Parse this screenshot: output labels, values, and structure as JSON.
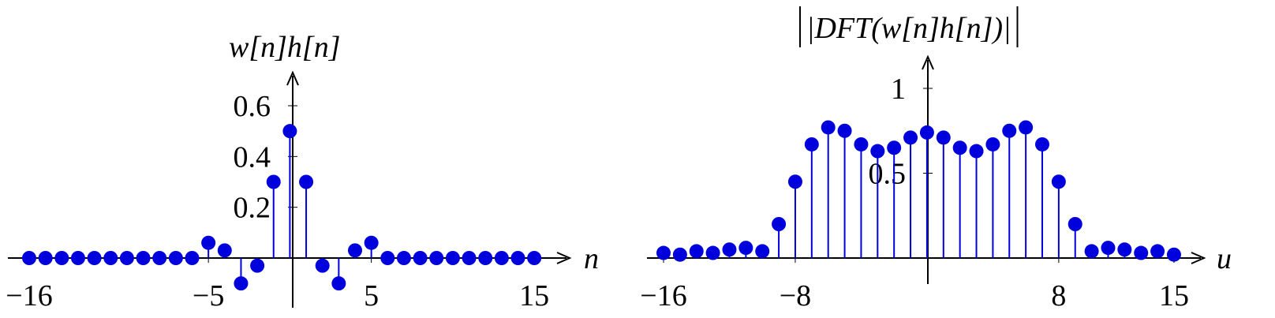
{
  "chart_data": [
    {
      "type": "stem",
      "title": "w[n]h[n]",
      "xlabel": "n",
      "ylabel": "",
      "x_tick_labels": [
        "−16",
        "−5",
        "5",
        "15"
      ],
      "x_ticks": [
        -16,
        -5,
        5,
        15
      ],
      "y_tick_labels": [
        "0.2",
        "0.4",
        "0.6"
      ],
      "y_ticks": [
        0.2,
        0.4,
        0.6
      ],
      "xlim": [
        -16,
        15
      ],
      "ylim": [
        -0.1,
        0.7
      ],
      "color": "#0000dd",
      "x": [
        -16,
        -15,
        -14,
        -13,
        -12,
        -11,
        -10,
        -9,
        -8,
        -7,
        -6,
        -5,
        -4,
        -3,
        -2,
        -1,
        0,
        1,
        2,
        3,
        4,
        5,
        6,
        7,
        8,
        9,
        10,
        11,
        12,
        13,
        14,
        15
      ],
      "values": [
        0,
        0,
        0,
        0,
        0,
        0,
        0,
        0,
        0,
        0,
        0,
        0.06,
        0.03,
        -0.1,
        -0.03,
        0.3,
        0.5,
        0.3,
        -0.03,
        -0.1,
        0.03,
        0.06,
        0,
        0,
        0,
        0,
        0,
        0,
        0,
        0,
        0,
        0
      ]
    },
    {
      "type": "stem",
      "title": "|DFT(w[n]h[n])|",
      "xlabel": "u",
      "ylabel": "",
      "x_tick_labels": [
        "−16",
        "−8",
        "8",
        "15"
      ],
      "x_ticks": [
        -16,
        -8,
        8,
        15
      ],
      "y_tick_labels": [
        "0.5",
        "1"
      ],
      "y_ticks": [
        0.5,
        1
      ],
      "xlim": [
        -16,
        15
      ],
      "ylim": [
        0,
        1.1
      ],
      "color": "#0000dd",
      "x": [
        -16,
        -15,
        -14,
        -13,
        -12,
        -11,
        -10,
        -9,
        -8,
        -7,
        -6,
        -5,
        -4,
        -3,
        -2,
        -1,
        0,
        1,
        2,
        3,
        4,
        5,
        6,
        7,
        8,
        9,
        10,
        11,
        12,
        13,
        14,
        15
      ],
      "values": [
        0.03,
        0.02,
        0.04,
        0.03,
        0.05,
        0.06,
        0.04,
        0.2,
        0.45,
        0.67,
        0.77,
        0.75,
        0.67,
        0.63,
        0.65,
        0.71,
        0.74,
        0.71,
        0.65,
        0.63,
        0.67,
        0.75,
        0.77,
        0.67,
        0.45,
        0.2,
        0.04,
        0.06,
        0.05,
        0.03,
        0.04,
        0.02
      ]
    }
  ]
}
